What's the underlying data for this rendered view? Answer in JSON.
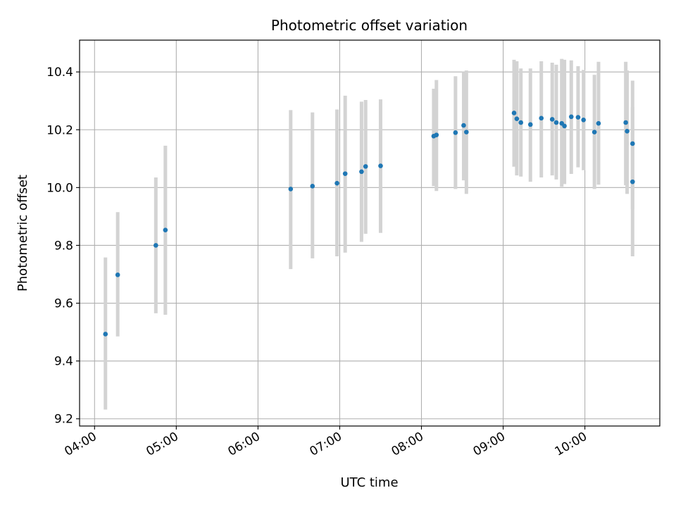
{
  "chart_data": {
    "type": "scatter",
    "title": "Photometric offset variation",
    "xlabel": "UTC time",
    "ylabel": "Photometric offset",
    "grid": true,
    "xlim": [
      "03:49",
      "10:55"
    ],
    "ylim": [
      9.175,
      10.51
    ],
    "x_ticks": [
      "04:00",
      "05:00",
      "06:00",
      "07:00",
      "08:00",
      "09:00",
      "10:00"
    ],
    "y_ticks": [
      "9.2",
      "9.4",
      "9.6",
      "9.8",
      "10.0",
      "10.2",
      "10.4"
    ],
    "colors": {
      "point": "#1f77b4",
      "errorbar": "#d3d3d3",
      "grid": "#b0b0b0"
    },
    "series": [
      {
        "points": [
          {
            "x": "04:08",
            "y": 9.493,
            "lo": 9.232,
            "hi": 9.758
          },
          {
            "x": "04:17",
            "y": 9.698,
            "lo": 9.485,
            "hi": 9.915
          },
          {
            "x": "04:45",
            "y": 9.8,
            "lo": 9.565,
            "hi": 10.035
          },
          {
            "x": "04:52",
            "y": 9.853,
            "lo": 9.56,
            "hi": 10.145
          },
          {
            "x": "06:24",
            "y": 9.995,
            "lo": 9.718,
            "hi": 10.268
          },
          {
            "x": "06:40",
            "y": 10.005,
            "lo": 9.755,
            "hi": 10.26
          },
          {
            "x": "06:58",
            "y": 10.015,
            "lo": 9.762,
            "hi": 10.27
          },
          {
            "x": "07:04",
            "y": 10.048,
            "lo": 9.775,
            "hi": 10.318
          },
          {
            "x": "07:16",
            "y": 10.055,
            "lo": 9.812,
            "hi": 10.297
          },
          {
            "x": "07:19",
            "y": 10.073,
            "lo": 9.84,
            "hi": 10.303
          },
          {
            "x": "07:30",
            "y": 10.075,
            "lo": 9.843,
            "hi": 10.305
          },
          {
            "x": "08:09",
            "y": 10.178,
            "lo": 10.005,
            "hi": 10.342
          },
          {
            "x": "08:11",
            "y": 10.182,
            "lo": 9.988,
            "hi": 10.372
          },
          {
            "x": "08:25",
            "y": 10.19,
            "lo": 9.995,
            "hi": 10.385
          },
          {
            "x": "08:31",
            "y": 10.215,
            "lo": 10.025,
            "hi": 10.4
          },
          {
            "x": "08:33",
            "y": 10.192,
            "lo": 9.978,
            "hi": 10.405
          },
          {
            "x": "09:08",
            "y": 10.258,
            "lo": 10.072,
            "hi": 10.442
          },
          {
            "x": "09:10",
            "y": 10.238,
            "lo": 10.042,
            "hi": 10.437
          },
          {
            "x": "09:13",
            "y": 10.225,
            "lo": 10.038,
            "hi": 10.412
          },
          {
            "x": "09:20",
            "y": 10.218,
            "lo": 10.02,
            "hi": 10.412
          },
          {
            "x": "09:28",
            "y": 10.24,
            "lo": 10.035,
            "hi": 10.437
          },
          {
            "x": "09:36",
            "y": 10.236,
            "lo": 10.042,
            "hi": 10.432
          },
          {
            "x": "09:39",
            "y": 10.225,
            "lo": 10.028,
            "hi": 10.425
          },
          {
            "x": "09:43",
            "y": 10.222,
            "lo": 10.003,
            "hi": 10.445
          },
          {
            "x": "09:45",
            "y": 10.213,
            "lo": 10.012,
            "hi": 10.442
          },
          {
            "x": "09:50",
            "y": 10.245,
            "lo": 10.047,
            "hi": 10.44
          },
          {
            "x": "09:55",
            "y": 10.243,
            "lo": 10.07,
            "hi": 10.42
          },
          {
            "x": "09:59",
            "y": 10.234,
            "lo": 10.06,
            "hi": 10.407
          },
          {
            "x": "10:07",
            "y": 10.192,
            "lo": 9.995,
            "hi": 10.39
          },
          {
            "x": "10:10",
            "y": 10.222,
            "lo": 10.01,
            "hi": 10.435
          },
          {
            "x": "10:30",
            "y": 10.225,
            "lo": 10.008,
            "hi": 10.435
          },
          {
            "x": "10:31",
            "y": 10.195,
            "lo": 9.978,
            "hi": 10.405
          },
          {
            "x": "10:35",
            "y": 10.152,
            "lo": 9.925,
            "hi": 10.37
          },
          {
            "x": "10:35",
            "y": 10.02,
            "lo": 9.762,
            "hi": 10.278
          }
        ]
      }
    ]
  }
}
